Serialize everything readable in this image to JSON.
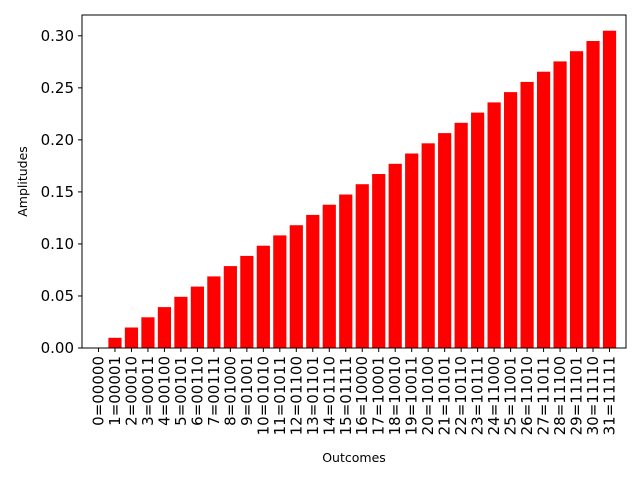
{
  "chart_data": {
    "type": "bar",
    "xlabel": "Outcomes",
    "ylabel": "Amplitudes",
    "ylim": [
      0,
      0.32
    ],
    "yticks": [
      "0.00",
      "0.05",
      "0.10",
      "0.15",
      "0.20",
      "0.25",
      "0.30"
    ],
    "bar_color": "#ff0000",
    "grid": false,
    "categories": [
      "0=00000",
      "1=00001",
      "2=00010",
      "3=00011",
      "4=00100",
      "5=00101",
      "6=00110",
      "7=00111",
      "8=01000",
      "9=01001",
      "10=01010",
      "11=01011",
      "12=01100",
      "13=01101",
      "14=01110",
      "15=01111",
      "16=10000",
      "17=10001",
      "18=10010",
      "19=10011",
      "20=10100",
      "21=10101",
      "22=10110",
      "23=10111",
      "24=11000",
      "25=11001",
      "26=11010",
      "27=11011",
      "28=11100",
      "29=11101",
      "30=11110",
      "31=11111"
    ],
    "values": [
      0.0,
      0.0098,
      0.0197,
      0.0295,
      0.0393,
      0.0492,
      0.059,
      0.0688,
      0.0787,
      0.0885,
      0.0983,
      0.1082,
      0.118,
      0.1279,
      0.1377,
      0.1475,
      0.1574,
      0.1672,
      0.177,
      0.1869,
      0.1967,
      0.2065,
      0.2164,
      0.2262,
      0.236,
      0.2459,
      0.2557,
      0.2655,
      0.2754,
      0.2852,
      0.295,
      0.3049
    ]
  }
}
